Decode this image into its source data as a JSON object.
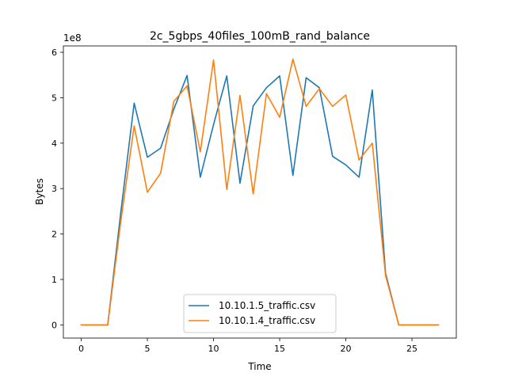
{
  "chart_data": {
    "type": "line",
    "title": "2c_5gbps_40files_100mB_rand_balance",
    "xlabel": "Time",
    "ylabel": "Bytes",
    "y_offset_label": "1e8",
    "xlim": [
      -1.35,
      28.35
    ],
    "ylim": [
      -29000000.0,
      614000000.0
    ],
    "xticks": [
      0,
      5,
      10,
      15,
      20,
      25
    ],
    "xtick_labels": [
      "0",
      "5",
      "10",
      "15",
      "20",
      "25"
    ],
    "yticks": [
      0,
      100000000.0,
      200000000.0,
      300000000.0,
      400000000.0,
      500000000.0,
      600000000.0
    ],
    "ytick_labels": [
      "0",
      "1",
      "2",
      "3",
      "4",
      "5",
      "6"
    ],
    "grid": false,
    "legend_position": "lower center",
    "x": [
      0,
      1,
      2,
      3,
      4,
      5,
      6,
      7,
      8,
      9,
      10,
      11,
      12,
      13,
      14,
      15,
      16,
      17,
      18,
      19,
      20,
      21,
      22,
      23,
      24,
      25,
      26,
      27
    ],
    "series": [
      {
        "name": "10.10.1.5_traffic.csv",
        "color": "#1f77b4",
        "values": [
          0,
          0,
          0,
          250000000.0,
          488000000.0,
          369000000.0,
          389000000.0,
          475000000.0,
          549000000.0,
          325000000.0,
          441000000.0,
          548000000.0,
          312000000.0,
          482000000.0,
          522000000.0,
          548000000.0,
          329000000.0,
          544000000.0,
          522000000.0,
          371000000.0,
          352000000.0,
          325000000.0,
          517000000.0,
          114000000.0,
          0,
          0,
          0,
          0
        ]
      },
      {
        "name": "10.10.1.4_traffic.csv",
        "color": "#ff7f0e",
        "values": [
          0,
          0,
          0,
          230000000.0,
          438000000.0,
          292000000.0,
          334000000.0,
          492000000.0,
          526000000.0,
          381000000.0,
          583000000.0,
          298000000.0,
          505000000.0,
          288000000.0,
          509000000.0,
          457000000.0,
          585000000.0,
          481000000.0,
          520000000.0,
          481000000.0,
          506000000.0,
          363000000.0,
          400000000.0,
          109000000.0,
          0,
          0,
          0,
          0
        ]
      }
    ]
  }
}
